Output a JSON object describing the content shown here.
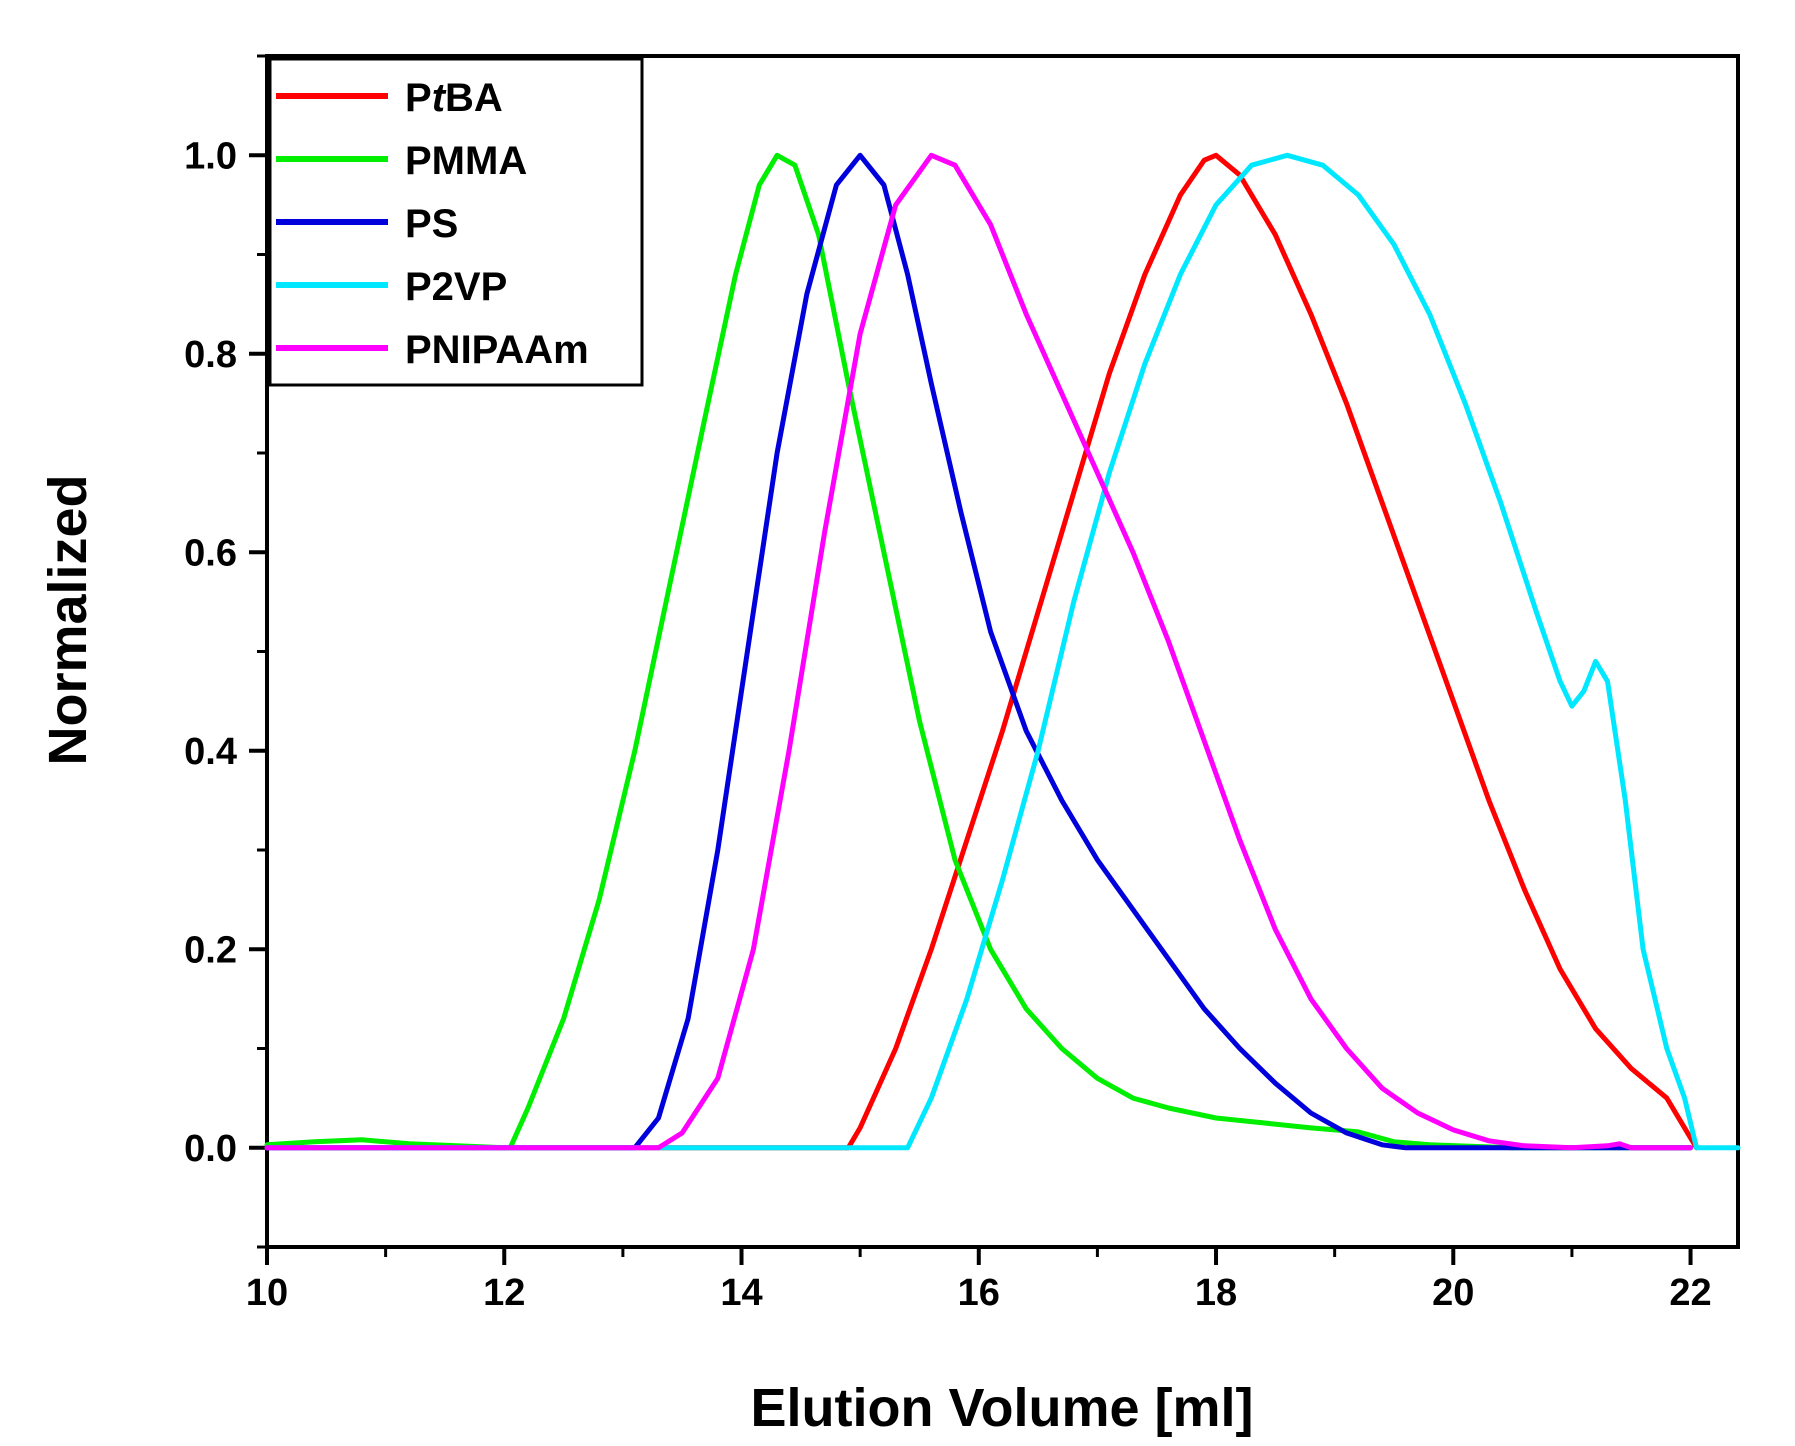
{
  "chart_data": {
    "type": "line",
    "title": "",
    "xlabel": "Elution Volume [ml]",
    "ylabel": "Normalized",
    "xlim": [
      10,
      22.4
    ],
    "ylim": [
      -0.1,
      1.1
    ],
    "x_ticks": [
      10,
      12,
      14,
      16,
      18,
      20,
      22
    ],
    "y_ticks": [
      0.0,
      0.2,
      0.4,
      0.6,
      0.8,
      1.0
    ],
    "x_tick_labels": [
      "10",
      "12",
      "14",
      "16",
      "18",
      "20",
      "22"
    ],
    "y_tick_labels": [
      "0.0",
      "0.2",
      "0.4",
      "0.6",
      "0.8",
      "1.0"
    ],
    "grid": false,
    "legend_position": "top-left",
    "series": [
      {
        "name": "PtBA",
        "legend_prefix": "P",
        "legend_italic": "t",
        "legend_suffix": "BA",
        "color": "#ff0000",
        "points": [
          [
            10,
            0
          ],
          [
            14.9,
            0
          ],
          [
            15.0,
            0.02
          ],
          [
            15.3,
            0.1
          ],
          [
            15.6,
            0.2
          ],
          [
            15.9,
            0.31
          ],
          [
            16.2,
            0.42
          ],
          [
            16.5,
            0.54
          ],
          [
            16.8,
            0.66
          ],
          [
            17.1,
            0.78
          ],
          [
            17.4,
            0.88
          ],
          [
            17.7,
            0.96
          ],
          [
            17.9,
            0.995
          ],
          [
            18.0,
            1.0
          ],
          [
            18.2,
            0.98
          ],
          [
            18.5,
            0.92
          ],
          [
            18.8,
            0.84
          ],
          [
            19.1,
            0.75
          ],
          [
            19.4,
            0.65
          ],
          [
            19.7,
            0.55
          ],
          [
            20.0,
            0.45
          ],
          [
            20.3,
            0.35
          ],
          [
            20.6,
            0.26
          ],
          [
            20.9,
            0.18
          ],
          [
            21.2,
            0.12
          ],
          [
            21.5,
            0.08
          ],
          [
            21.8,
            0.05
          ],
          [
            22.0,
            0.01
          ],
          [
            22.05,
            0
          ]
        ]
      },
      {
        "name": "PMMA",
        "color": "#00ee00",
        "points": [
          [
            10,
            0.003
          ],
          [
            10.4,
            0.006
          ],
          [
            10.8,
            0.008
          ],
          [
            11.2,
            0.004
          ],
          [
            11.6,
            0.002
          ],
          [
            12.0,
            0.0
          ],
          [
            12.05,
            0.0
          ],
          [
            12.2,
            0.04
          ],
          [
            12.5,
            0.13
          ],
          [
            12.8,
            0.25
          ],
          [
            13.1,
            0.4
          ],
          [
            13.4,
            0.57
          ],
          [
            13.7,
            0.74
          ],
          [
            13.95,
            0.88
          ],
          [
            14.15,
            0.97
          ],
          [
            14.3,
            1.0
          ],
          [
            14.45,
            0.99
          ],
          [
            14.65,
            0.92
          ],
          [
            14.9,
            0.77
          ],
          [
            15.2,
            0.6
          ],
          [
            15.5,
            0.43
          ],
          [
            15.8,
            0.29
          ],
          [
            16.1,
            0.2
          ],
          [
            16.4,
            0.14
          ],
          [
            16.7,
            0.1
          ],
          [
            17.0,
            0.07
          ],
          [
            17.3,
            0.05
          ],
          [
            17.6,
            0.04
          ],
          [
            18.0,
            0.03
          ],
          [
            18.4,
            0.025
          ],
          [
            18.8,
            0.02
          ],
          [
            19.2,
            0.016
          ],
          [
            19.5,
            0.006
          ],
          [
            19.8,
            0.003
          ],
          [
            20.5,
            0
          ],
          [
            22.0,
            0
          ]
        ]
      },
      {
        "name": "PS",
        "color": "#0000dd",
        "points": [
          [
            10,
            0
          ],
          [
            13.1,
            0
          ],
          [
            13.3,
            0.03
          ],
          [
            13.55,
            0.13
          ],
          [
            13.8,
            0.3
          ],
          [
            14.05,
            0.5
          ],
          [
            14.3,
            0.7
          ],
          [
            14.55,
            0.86
          ],
          [
            14.8,
            0.97
          ],
          [
            15.0,
            1.0
          ],
          [
            15.2,
            0.97
          ],
          [
            15.4,
            0.88
          ],
          [
            15.6,
            0.77
          ],
          [
            15.85,
            0.64
          ],
          [
            16.1,
            0.52
          ],
          [
            16.4,
            0.42
          ],
          [
            16.7,
            0.35
          ],
          [
            17.0,
            0.29
          ],
          [
            17.3,
            0.24
          ],
          [
            17.6,
            0.19
          ],
          [
            17.9,
            0.14
          ],
          [
            18.2,
            0.1
          ],
          [
            18.5,
            0.065
          ],
          [
            18.8,
            0.035
          ],
          [
            19.1,
            0.015
          ],
          [
            19.4,
            0.003
          ],
          [
            19.6,
            0
          ],
          [
            22.0,
            0
          ]
        ]
      },
      {
        "name": "P2VP",
        "color": "#00e8ff",
        "points": [
          [
            10,
            0
          ],
          [
            15.4,
            0
          ],
          [
            15.6,
            0.05
          ],
          [
            15.9,
            0.15
          ],
          [
            16.2,
            0.27
          ],
          [
            16.5,
            0.4
          ],
          [
            16.8,
            0.55
          ],
          [
            17.1,
            0.68
          ],
          [
            17.4,
            0.79
          ],
          [
            17.7,
            0.88
          ],
          [
            18.0,
            0.95
          ],
          [
            18.3,
            0.99
          ],
          [
            18.6,
            1.0
          ],
          [
            18.9,
            0.99
          ],
          [
            19.2,
            0.96
          ],
          [
            19.5,
            0.91
          ],
          [
            19.8,
            0.84
          ],
          [
            20.1,
            0.75
          ],
          [
            20.4,
            0.65
          ],
          [
            20.7,
            0.54
          ],
          [
            20.9,
            0.47
          ],
          [
            21.0,
            0.445
          ],
          [
            21.1,
            0.46
          ],
          [
            21.2,
            0.49
          ],
          [
            21.3,
            0.47
          ],
          [
            21.45,
            0.35
          ],
          [
            21.6,
            0.2
          ],
          [
            21.8,
            0.1
          ],
          [
            21.95,
            0.05
          ],
          [
            22.05,
            0
          ],
          [
            22.4,
            0
          ]
        ]
      },
      {
        "name": "PNIPAAm",
        "color": "#ff00ff",
        "points": [
          [
            10,
            0
          ],
          [
            13.3,
            0
          ],
          [
            13.5,
            0.015
          ],
          [
            13.8,
            0.07
          ],
          [
            14.1,
            0.2
          ],
          [
            14.4,
            0.4
          ],
          [
            14.7,
            0.62
          ],
          [
            15.0,
            0.82
          ],
          [
            15.3,
            0.95
          ],
          [
            15.6,
            1.0
          ],
          [
            15.8,
            0.99
          ],
          [
            16.1,
            0.93
          ],
          [
            16.4,
            0.84
          ],
          [
            16.7,
            0.76
          ],
          [
            17.0,
            0.68
          ],
          [
            17.3,
            0.6
          ],
          [
            17.6,
            0.51
          ],
          [
            17.9,
            0.41
          ],
          [
            18.2,
            0.31
          ],
          [
            18.5,
            0.22
          ],
          [
            18.8,
            0.15
          ],
          [
            19.1,
            0.1
          ],
          [
            19.4,
            0.06
          ],
          [
            19.7,
            0.035
          ],
          [
            20.0,
            0.018
          ],
          [
            20.3,
            0.007
          ],
          [
            20.6,
            0.002
          ],
          [
            21.0,
            0
          ],
          [
            21.3,
            0.002
          ],
          [
            21.4,
            0.004
          ],
          [
            21.5,
            0
          ],
          [
            22.0,
            0
          ]
        ]
      }
    ]
  }
}
